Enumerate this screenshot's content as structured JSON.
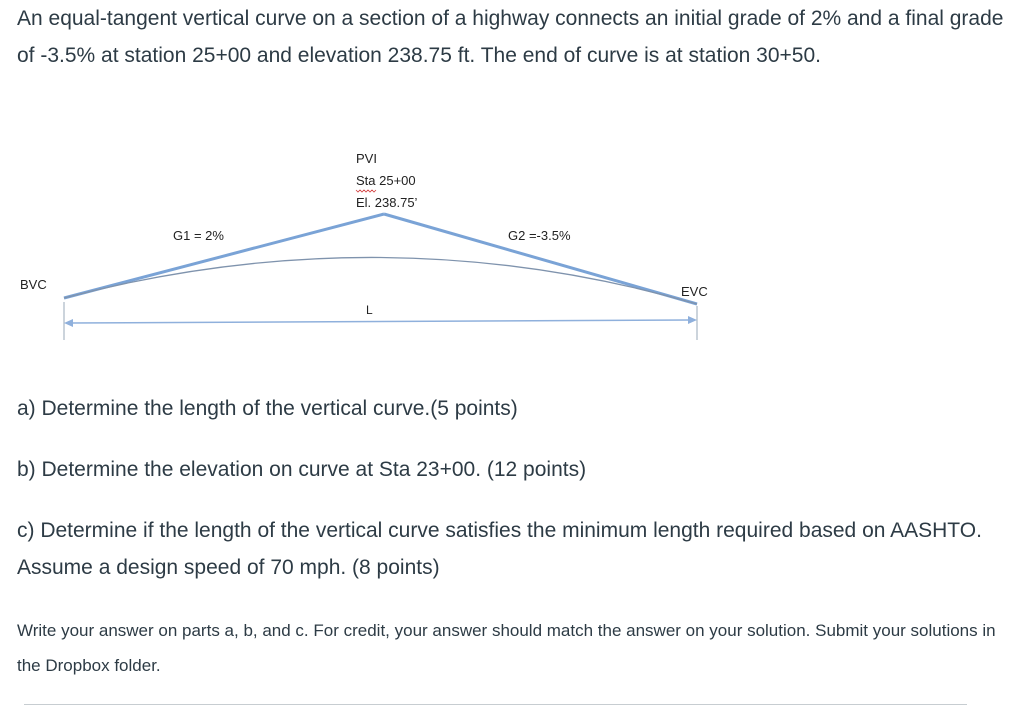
{
  "problem": {
    "intro": "An equal-tangent vertical curve on a section of a highway connects an initial grade of 2% and a final grade of -3.5% at station 25+00 and elevation 238.75 ft.  The end of curve is at station 30+50."
  },
  "diagram": {
    "pvi_label": "PVI",
    "pvi_station": "Sta 25+00",
    "pvi_elevation": "El. 238.75’",
    "g1_label": "G1 = 2%",
    "g2_label": "G2 =-3.5%",
    "bvc_label": "BVC",
    "evc_label": "EVC",
    "length_label": "L",
    "colors": {
      "tangent": "#7aa3d6",
      "curve": "#7f93ad",
      "arrow": "#8fb0dc",
      "text": "#222222"
    }
  },
  "questions": {
    "a": "a) Determine the length of the vertical curve.(5 points)",
    "b": "b) Determine the elevation on curve at Sta 23+00. (12 points)",
    "c": "c) Determine if the length of the vertical curve satisfies the minimum length required based on AASHTO.  Assume a design speed of 70 mph. (8 points)"
  },
  "instructions": "Write your answer on parts a, b, and c.  For credit, your answer should match the answer on your solution.  Submit your solutions in the Dropbox folder."
}
